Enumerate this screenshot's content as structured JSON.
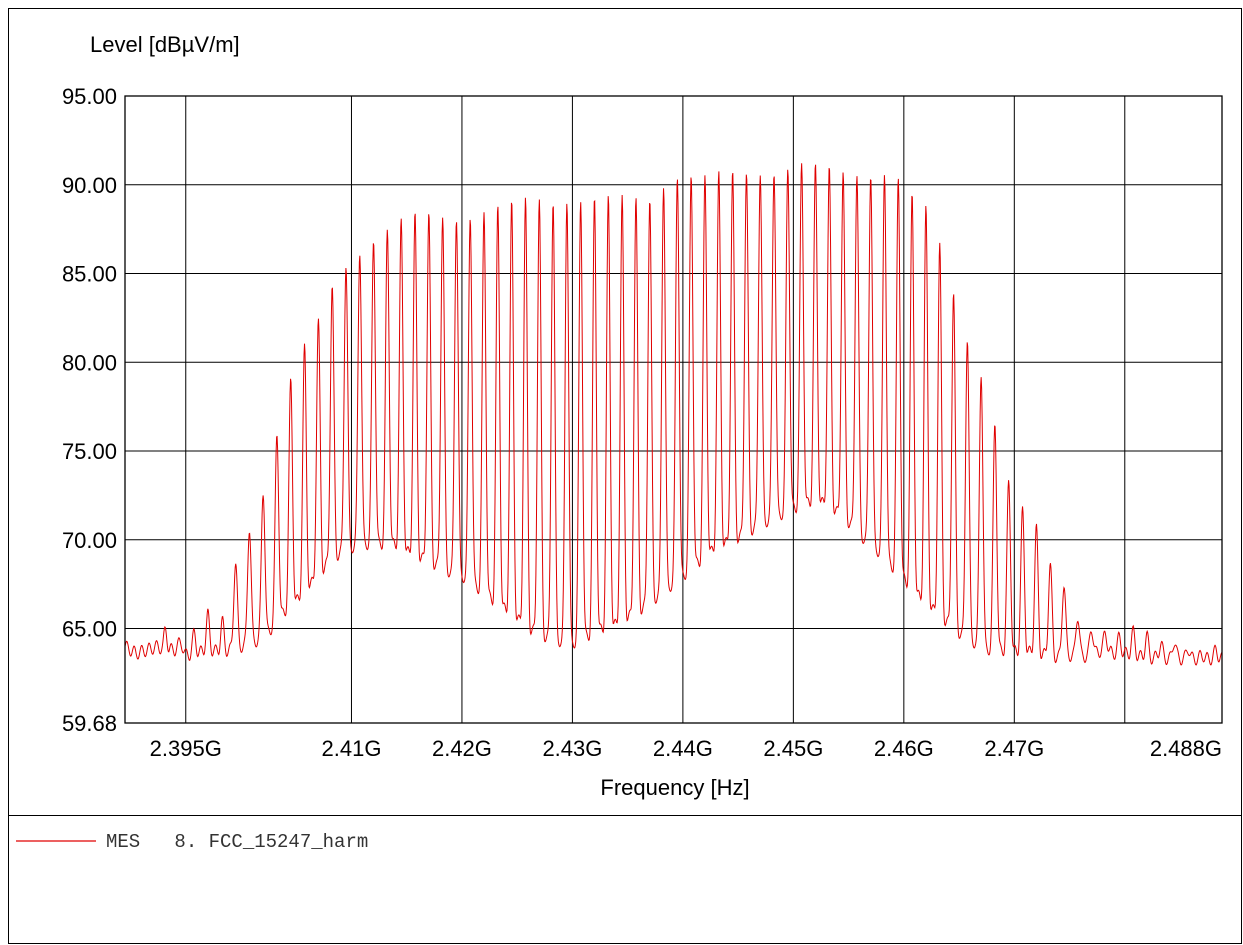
{
  "chart_data": {
    "type": "line",
    "ylabel": "Level [dBµV/m]",
    "xlabel": "Frequency [Hz]",
    "ylim": [
      59.68,
      95.0
    ],
    "xlim": [
      2.3895,
      2.4888
    ],
    "y_ticks": [
      {
        "value": 95.0,
        "label": "95.00"
      },
      {
        "value": 90.0,
        "label": "90.00"
      },
      {
        "value": 85.0,
        "label": "85.00"
      },
      {
        "value": 80.0,
        "label": "80.00"
      },
      {
        "value": 75.0,
        "label": "75.00"
      },
      {
        "value": 70.0,
        "label": "70.00"
      },
      {
        "value": 65.0,
        "label": "65.00"
      },
      {
        "value": 59.68,
        "label": "59.68"
      }
    ],
    "x_ticks": [
      {
        "value": 2.395,
        "label": "2.395G"
      },
      {
        "value": 2.41,
        "label": "2.41G"
      },
      {
        "value": 2.42,
        "label": "2.42G"
      },
      {
        "value": 2.43,
        "label": "2.43G"
      },
      {
        "value": 2.44,
        "label": "2.44G"
      },
      {
        "value": 2.45,
        "label": "2.45G"
      },
      {
        "value": 2.46,
        "label": "2.46G"
      },
      {
        "value": 2.47,
        "label": "2.47G"
      },
      {
        "value": 2.488,
        "label": "2.488G"
      }
    ],
    "x_gridlines": [
      2.395,
      2.41,
      2.42,
      2.43,
      2.44,
      2.45,
      2.46,
      2.47,
      2.48
    ],
    "grid": true,
    "series": [
      {
        "name": "MES 8. FCC_15247_harm",
        "color": "#e00000",
        "x": [
          2.3895,
          2.3905,
          2.3915,
          2.3925,
          2.393,
          2.3935,
          2.394,
          2.3945,
          2.395,
          2.396,
          2.397,
          2.398,
          2.399,
          2.4,
          2.401,
          2.402,
          2.403,
          2.404,
          2.405,
          2.406,
          2.407,
          2.408,
          2.409,
          2.41,
          2.411,
          2.412,
          2.413,
          2.414,
          2.415,
          2.416,
          2.417,
          2.418,
          2.419,
          2.42,
          2.421,
          2.422,
          2.423,
          2.424,
          2.425,
          2.426,
          2.427,
          2.428,
          2.429,
          2.43,
          2.431,
          2.432,
          2.433,
          2.434,
          2.435,
          2.436,
          2.437,
          2.438,
          2.439,
          2.44,
          2.441,
          2.442,
          2.443,
          2.444,
          2.445,
          2.446,
          2.447,
          2.448,
          2.449,
          2.45,
          2.451,
          2.452,
          2.453,
          2.454,
          2.455,
          2.456,
          2.457,
          2.458,
          2.459,
          2.46,
          2.461,
          2.462,
          2.463,
          2.464,
          2.465,
          2.466,
          2.467,
          2.468,
          2.469,
          2.47,
          2.471,
          2.472,
          2.473,
          2.474,
          2.475,
          2.476,
          2.477,
          2.478,
          2.479,
          2.48,
          2.481,
          2.482,
          2.483,
          2.484,
          2.485,
          2.486,
          2.487,
          2.488,
          2.4888
        ],
        "values": [
          64.0,
          63.6,
          63.8,
          64.0,
          65.8,
          63.8,
          64.1,
          64.2,
          64.3,
          64.8,
          65.8,
          64.3,
          68.2,
          69.3,
          71.2,
          72.8,
          75.3,
          78.0,
          79.8,
          81.0,
          82.2,
          84.0,
          85.2,
          86.0,
          86.5,
          87.0,
          87.3,
          87.6,
          88.0,
          88.2,
          88.3,
          88.3,
          88.3,
          88.3,
          88.4,
          88.5,
          88.6,
          88.7,
          88.9,
          89.1,
          89.2,
          89.2,
          89.3,
          89.3,
          89.2,
          89.2,
          89.1,
          89.1,
          89.1,
          89.2,
          89.3,
          90.0,
          90.6,
          90.7,
          90.5,
          90.3,
          90.4,
          90.5,
          90.6,
          90.7,
          90.8,
          90.9,
          91.0,
          91.1,
          91.1,
          90.9,
          90.8,
          90.6,
          90.6,
          90.7,
          90.8,
          90.9,
          90.6,
          90.2,
          89.0,
          88.5,
          87.0,
          85.0,
          82.9,
          81.0,
          79.5,
          77.4,
          74.4,
          72.0,
          71.4,
          70.6,
          68.6,
          68.5,
          66.5,
          65.5,
          65.0,
          64.8,
          64.5,
          64.5,
          64.9,
          64.6,
          64.0,
          64.5,
          64.1,
          63.8,
          63.5,
          63.8,
          63.8
        ],
        "troughs": [
          64.0,
          63.6,
          63.8,
          64.0,
          63.8,
          63.8,
          63.8,
          64.1,
          63.5,
          63.6,
          63.8,
          63.7,
          63.8,
          64.0,
          64.2,
          64.5,
          65.2,
          66.0,
          66.5,
          67.2,
          68.0,
          68.8,
          69.3,
          69.6,
          69.8,
          69.8,
          69.8,
          69.7,
          69.3,
          69.0,
          68.8,
          68.5,
          68.2,
          68.0,
          67.6,
          67.0,
          66.5,
          66.0,
          65.5,
          65.0,
          64.7,
          64.5,
          64.3,
          64.2,
          64.5,
          64.8,
          65.0,
          65.2,
          65.6,
          66.0,
          66.5,
          67.0,
          67.5,
          68.0,
          68.5,
          69.0,
          69.5,
          69.8,
          70.1,
          70.5,
          70.9,
          71.2,
          71.5,
          71.8,
          72.0,
          72.1,
          72.0,
          71.5,
          71.0,
          70.3,
          69.8,
          69.2,
          68.5,
          67.8,
          67.0,
          66.4,
          65.8,
          65.3,
          64.8,
          64.4,
          64.0,
          63.8,
          63.8,
          63.7,
          63.7,
          63.6,
          63.5,
          63.4,
          63.5,
          63.4,
          63.5,
          63.8,
          63.6,
          63.6,
          63.5,
          63.3,
          63.4,
          63.3,
          63.3,
          63.3,
          63.3,
          63.3,
          63.3
        ]
      }
    ]
  },
  "legend": {
    "label": "MES   8. FCC_15247_harm",
    "color": "#e00000"
  }
}
